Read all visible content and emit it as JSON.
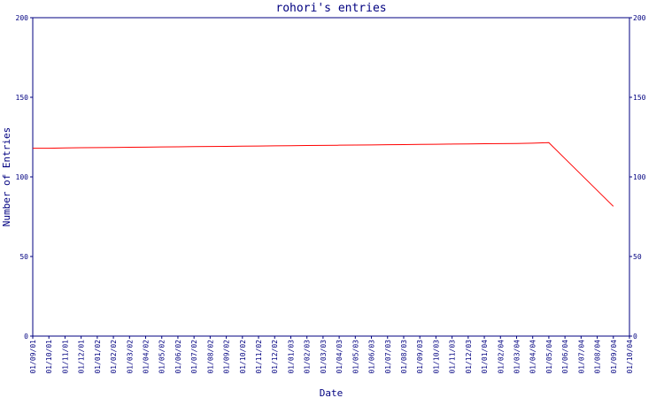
{
  "chart_data": {
    "type": "line",
    "title": "rohori's entries",
    "x_label": "Date",
    "y_label": "Number of Entries",
    "categories": [
      "01/09/01",
      "01/10/01",
      "01/11/01",
      "01/12/01",
      "01/01/02",
      "01/02/02",
      "01/03/02",
      "01/04/02",
      "01/05/02",
      "01/06/02",
      "01/07/02",
      "01/08/02",
      "01/09/02",
      "01/10/02",
      "01/11/02",
      "01/12/02",
      "01/01/03",
      "01/02/03",
      "01/03/03",
      "01/04/03",
      "01/05/03",
      "01/06/03",
      "01/07/03",
      "01/08/03",
      "01/09/03",
      "01/10/03",
      "01/11/03",
      "01/12/03",
      "01/01/04",
      "01/02/04",
      "01/03/04",
      "01/04/04",
      "01/05/04",
      "01/06/04",
      "01/07/04",
      "01/08/04",
      "01/09/04",
      "01/10/04"
    ],
    "series": [
      {
        "color": "#ff0000",
        "values": [
          118,
          118,
          118.2,
          118.3,
          118.4,
          118.5,
          118.6,
          118.7,
          118.8,
          118.9,
          119,
          119.1,
          119.2,
          119.3,
          119.4,
          119.5,
          119.6,
          119.7,
          119.8,
          119.9,
          120,
          120.1,
          120.2,
          120.3,
          120.4,
          120.5,
          120.6,
          120.7,
          120.8,
          120.9,
          121,
          121.2,
          121.5,
          111.5,
          101.5,
          91.5,
          81.5,
          null
        ]
      }
    ],
    "ylim": [
      0,
      200
    ],
    "yticks": [
      0,
      50,
      100,
      150,
      200
    ],
    "grid": false
  }
}
